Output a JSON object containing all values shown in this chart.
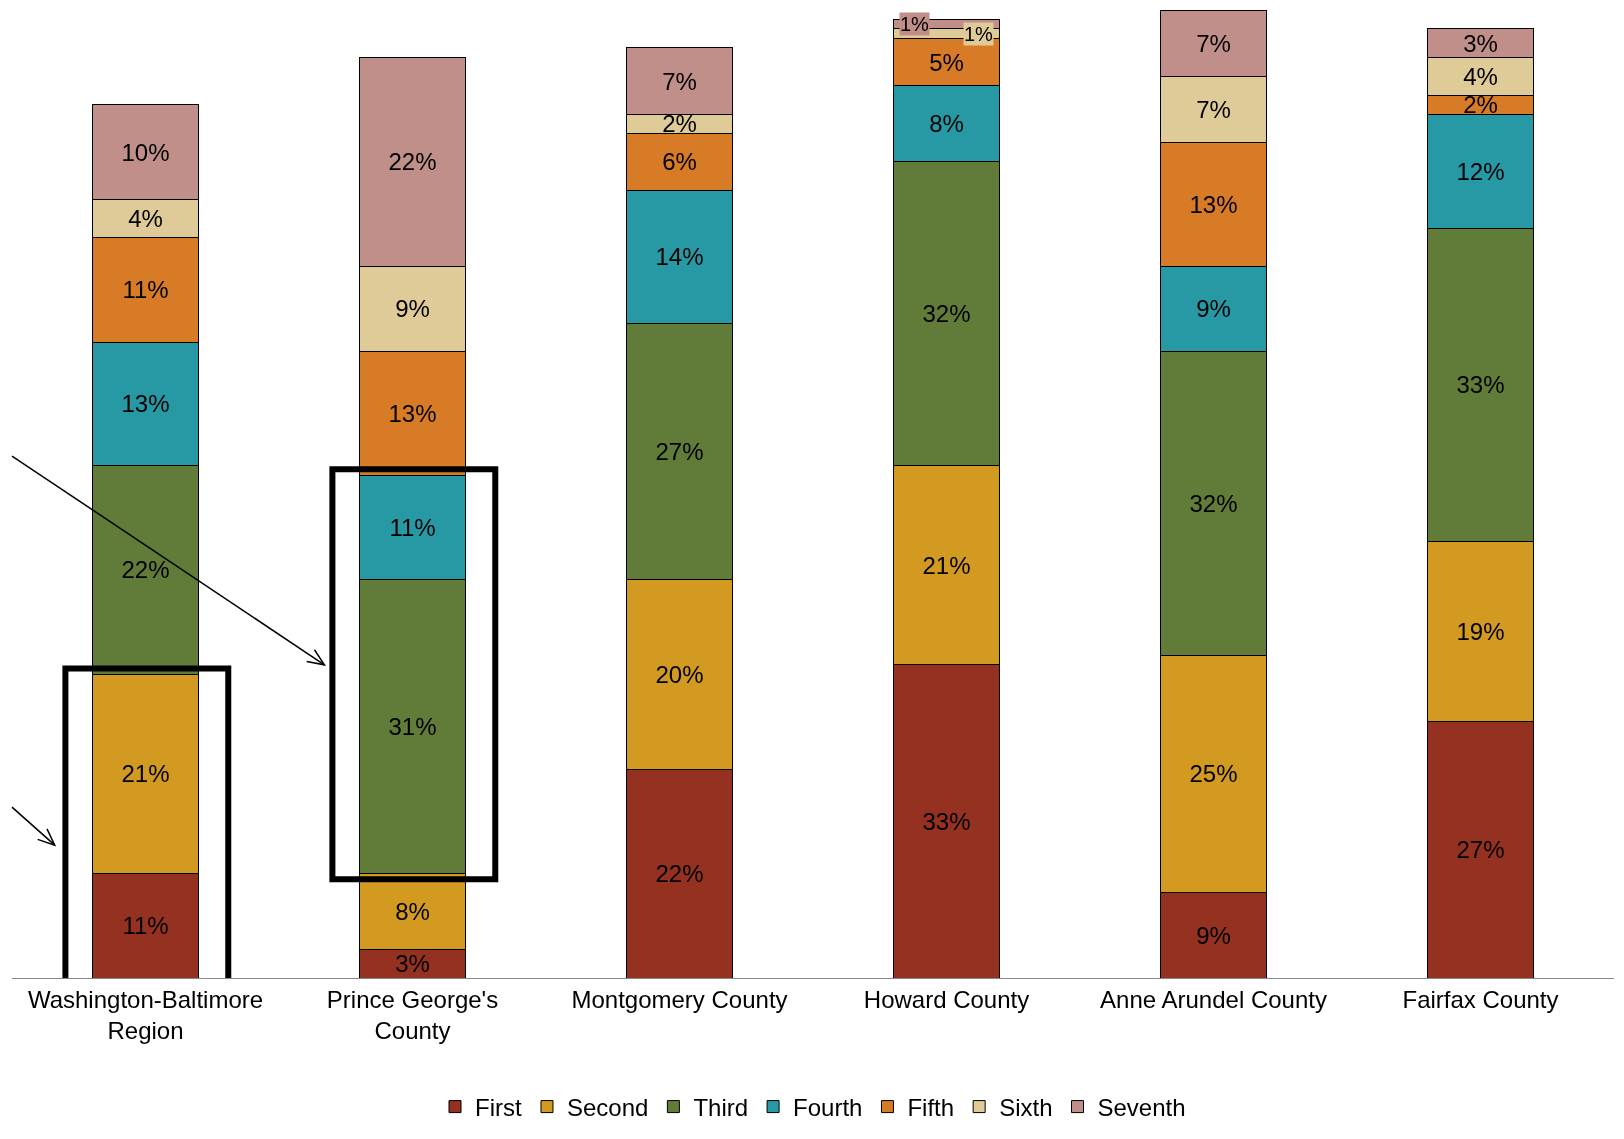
{
  "chart_data": {
    "type": "bar",
    "stacked": true,
    "categories": [
      "Washington-Baltimore Region",
      "Prince George's County",
      "Montgomery County",
      "Howard County",
      "Anne Arundel County",
      "Fairfax County"
    ],
    "series": [
      {
        "name": "First",
        "color": "#943121",
        "values": [
          11,
          3,
          22,
          33,
          9,
          27
        ],
        "value_labels": [
          "11%",
          "3%",
          "22%",
          "33%",
          "9%",
          "27%"
        ]
      },
      {
        "name": "Second",
        "color": "#d39a22",
        "values": [
          21,
          8,
          20,
          21,
          25,
          19
        ],
        "value_labels": [
          "21%",
          "8%",
          "20%",
          "21%",
          "25%",
          "19%"
        ]
      },
      {
        "name": "Third",
        "color": "#617b38",
        "values": [
          22,
          31,
          27,
          32,
          32,
          33
        ],
        "value_labels": [
          "22%",
          "31%",
          "27%",
          "32%",
          "32%",
          "33%"
        ]
      },
      {
        "name": "Fourth",
        "color": "#2799a5",
        "values": [
          13,
          11,
          14,
          8,
          9,
          12
        ],
        "value_labels": [
          "13%",
          "11%",
          "14%",
          "8%",
          "9%",
          "12%"
        ]
      },
      {
        "name": "Fifth",
        "color": "#d87b27",
        "values": [
          11,
          13,
          6,
          5,
          13,
          2
        ],
        "value_labels": [
          "11%",
          "13%",
          "6%",
          "5%",
          "13%",
          "2%"
        ]
      },
      {
        "name": "Sixth",
        "color": "#dfcb98",
        "values": [
          4,
          9,
          2,
          1,
          7,
          4
        ],
        "value_labels": [
          "4%",
          "9%",
          "2%",
          "1%",
          "7%",
          "4%"
        ]
      },
      {
        "name": "Seventh",
        "color": "#c08f8a",
        "values": [
          10,
          22,
          7,
          1,
          7,
          3
        ],
        "value_labels": [
          "10%",
          "22%",
          "7%",
          "1%",
          "7%",
          "3%"
        ]
      }
    ],
    "grid": false,
    "legend": "bottom"
  }
}
